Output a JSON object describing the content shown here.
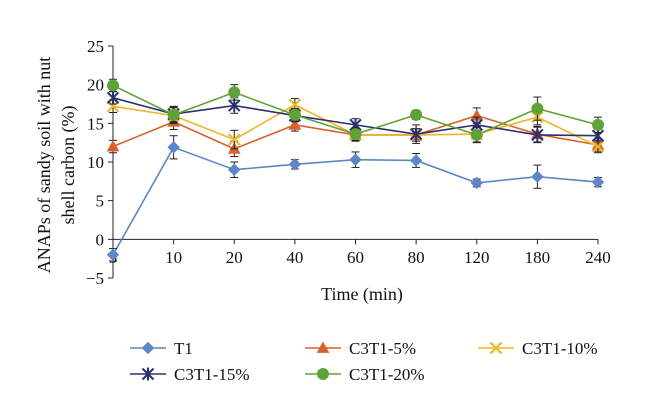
{
  "chart_data": {
    "type": "line",
    "title": "",
    "xlabel": "Time (min)",
    "ylabel_lines": [
      "ANAPs of sandy soil with nut",
      "shell carbon (%)"
    ],
    "categories": [
      "5",
      "10",
      "20",
      "40",
      "60",
      "80",
      "120",
      "180",
      "240"
    ],
    "ylim": [
      -5,
      25
    ],
    "yticks": [
      "25",
      "20",
      "15",
      "10",
      "5",
      "0",
      "−5"
    ],
    "ytick_values": [
      25,
      20,
      15,
      10,
      5,
      0,
      -5
    ],
    "grid": false,
    "legend_position": "bottom",
    "series": [
      {
        "name": "T1",
        "color": "#5b87c5",
        "marker": "diamond",
        "values": [
          -2.0,
          11.9,
          9.0,
          9.7,
          10.3,
          10.2,
          7.3,
          8.1,
          7.4
        ],
        "errors": [
          0.8,
          1.5,
          1.0,
          0.6,
          1.0,
          0.9,
          0.5,
          1.5,
          0.6
        ]
      },
      {
        "name": "C3T1-5%",
        "color": "#d9622b",
        "marker": "triangle",
        "values": [
          12.0,
          15.2,
          11.7,
          14.8,
          13.5,
          13.5,
          16.0,
          13.6,
          12.2
        ],
        "errors": [
          0.8,
          1.0,
          1.0,
          0.8,
          0.8,
          0.8,
          1.0,
          1.0,
          0.8
        ]
      },
      {
        "name": "C3T1-10%",
        "color": "#f0b52a",
        "marker": "x",
        "values": [
          17.2,
          16.0,
          12.9,
          17.4,
          13.5,
          13.5,
          13.6,
          15.8,
          12.0
        ],
        "errors": [
          0.8,
          1.0,
          1.2,
          0.8,
          0.8,
          0.8,
          1.0,
          1.0,
          0.8
        ]
      },
      {
        "name": "C3T1-15%",
        "color": "#2d2f6e",
        "marker": "star",
        "values": [
          18.3,
          16.2,
          17.3,
          16.0,
          14.8,
          13.6,
          14.8,
          13.5,
          13.4
        ],
        "errors": [
          0.8,
          1.0,
          1.0,
          0.8,
          0.8,
          1.2,
          1.0,
          1.0,
          0.8
        ]
      },
      {
        "name": "C3T1-20%",
        "color": "#5fa23a",
        "marker": "circle",
        "values": [
          19.9,
          16.1,
          19.0,
          16.1,
          13.6,
          16.1,
          13.5,
          16.9,
          14.8
        ],
        "errors": [
          0.8,
          1.0,
          1.0,
          0.8,
          0.8,
          0.6,
          1.0,
          1.5,
          1.0
        ]
      }
    ]
  }
}
